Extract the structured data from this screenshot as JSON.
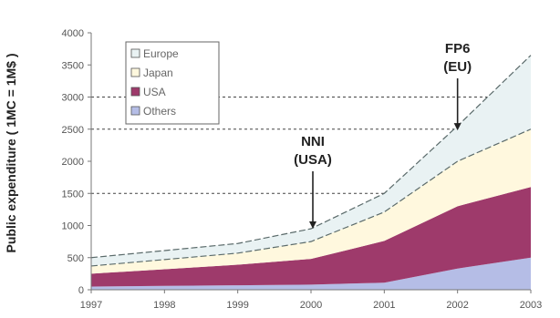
{
  "chart_data": {
    "type": "area",
    "stacked": true,
    "x": [
      "1997",
      "1998",
      "1999",
      "2000",
      "2001",
      "2002",
      "2003"
    ],
    "ylabel": "Public expenditure ( 1MC = 1M$ )",
    "ylim": [
      0,
      4000
    ],
    "yticks": [
      "0",
      "500",
      "1000",
      "1500",
      "2000",
      "2500",
      "3000",
      "3500",
      "4000"
    ],
    "grid": "dashed horizontal lines at 1500, 2500, 3000",
    "legend_position": "top-left",
    "series": [
      {
        "name": "Others",
        "color": "#b5bde6",
        "values": [
          50,
          60,
          70,
          80,
          110,
          330,
          500
        ]
      },
      {
        "name": "USA",
        "color": "#9e3a6b",
        "values": [
          200,
          260,
          320,
          400,
          650,
          970,
          1100
        ]
      },
      {
        "name": "Japan",
        "color": "#fff8de",
        "values": [
          120,
          150,
          180,
          270,
          450,
          700,
          900
        ]
      },
      {
        "name": "Europe",
        "color": "#e9f2f3",
        "values": [
          130,
          140,
          150,
          200,
          290,
          550,
          1150
        ]
      }
    ],
    "annotations": [
      {
        "text_line1": "NNI",
        "text_line2": "(USA)",
        "x": "2000",
        "arrow_to": 950
      },
      {
        "text_line1": "FP6",
        "text_line2": "(EU)",
        "x": "2002",
        "arrow_to": 2480
      }
    ],
    "legend_entries": [
      "Europe",
      "Japan",
      "USA",
      "Others"
    ]
  }
}
